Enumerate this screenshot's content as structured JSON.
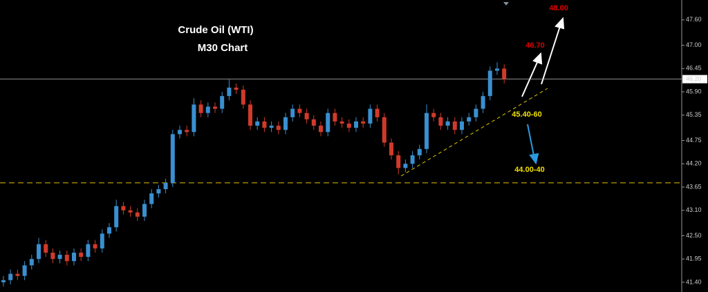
{
  "chart_data": {
    "type": "candlestick",
    "title": "Crude Oil (WTI)",
    "subtitle": "M30 Chart",
    "annotations": [
      "48.00",
      "46.70",
      "45.40-60",
      "44.00-40"
    ],
    "open": [
      41.4,
      41.45,
      41.6,
      41.55,
      41.8,
      41.95,
      42.3,
      42.1,
      41.95,
      42.05,
      41.9,
      42.1,
      42.0,
      42.3,
      42.2,
      42.55,
      42.7,
      43.2,
      43.1,
      43.05,
      42.95,
      43.25,
      43.5,
      43.6,
      43.75,
      44.9,
      45.0,
      44.95,
      45.6,
      45.4,
      45.55,
      45.5,
      45.8,
      46.0,
      45.95,
      45.6,
      45.1,
      45.2,
      45.05,
      45.1,
      45.0,
      45.3,
      45.5,
      45.4,
      45.25,
      45.1,
      44.95,
      45.4,
      45.2,
      45.15,
      45.05,
      45.2,
      45.15,
      45.5,
      45.3,
      44.7,
      44.4,
      44.1,
      44.2,
      44.4,
      44.55,
      45.4,
      45.3,
      45.1,
      45.2,
      45.0,
      45.2,
      45.3,
      45.5,
      45.8,
      46.4,
      46.45
    ],
    "high": [
      41.55,
      41.7,
      41.7,
      41.9,
      42.05,
      42.45,
      42.4,
      42.2,
      42.15,
      42.15,
      42.2,
      42.2,
      42.4,
      42.4,
      42.65,
      42.8,
      43.35,
      43.3,
      43.2,
      43.15,
      43.35,
      43.6,
      43.7,
      43.85,
      45.0,
      45.1,
      45.1,
      45.75,
      45.7,
      45.65,
      45.65,
      45.9,
      46.2,
      46.1,
      46.05,
      45.7,
      45.3,
      45.3,
      45.2,
      45.2,
      45.4,
      45.6,
      45.6,
      45.5,
      45.35,
      45.2,
      45.5,
      45.5,
      45.3,
      45.25,
      45.3,
      45.3,
      45.6,
      45.6,
      45.4,
      44.8,
      44.5,
      44.3,
      44.5,
      44.65,
      45.6,
      45.5,
      45.4,
      45.3,
      45.3,
      45.3,
      45.4,
      45.6,
      45.9,
      46.5,
      46.6,
      46.55
    ],
    "low": [
      41.3,
      41.35,
      41.45,
      41.45,
      41.7,
      41.85,
      42.0,
      41.85,
      41.85,
      41.8,
      41.8,
      41.9,
      41.9,
      42.1,
      42.1,
      42.45,
      42.6,
      43.0,
      42.95,
      42.85,
      42.85,
      43.15,
      43.4,
      43.5,
      43.65,
      44.8,
      44.85,
      44.85,
      45.3,
      45.3,
      45.4,
      45.4,
      45.7,
      45.85,
      45.5,
      45.0,
      45.0,
      44.95,
      44.95,
      44.9,
      44.9,
      45.2,
      45.3,
      45.15,
      45.0,
      44.85,
      44.85,
      45.1,
      45.05,
      44.95,
      44.95,
      45.05,
      45.05,
      45.2,
      44.6,
      44.3,
      43.95,
      44.0,
      44.1,
      44.3,
      44.45,
      45.2,
      45.0,
      45.0,
      44.9,
      44.9,
      45.1,
      45.2,
      45.4,
      45.7,
      46.3,
      46.1
    ],
    "close": [
      41.45,
      41.6,
      41.55,
      41.8,
      41.95,
      42.3,
      42.1,
      41.95,
      42.05,
      41.9,
      42.1,
      42.0,
      42.3,
      42.2,
      42.55,
      42.7,
      43.2,
      43.1,
      43.05,
      42.95,
      43.25,
      43.5,
      43.6,
      43.75,
      44.9,
      45.0,
      44.95,
      45.6,
      45.4,
      45.55,
      45.5,
      45.8,
      46.0,
      45.95,
      45.6,
      45.1,
      45.2,
      45.05,
      45.1,
      45.0,
      45.3,
      45.5,
      45.4,
      45.25,
      45.1,
      44.95,
      45.4,
      45.2,
      45.15,
      45.05,
      45.2,
      45.15,
      45.5,
      45.3,
      44.7,
      44.4,
      44.1,
      44.2,
      44.4,
      44.55,
      45.4,
      45.3,
      45.1,
      45.2,
      45.0,
      45.2,
      45.3,
      45.5,
      45.8,
      46.4,
      46.45,
      46.2
    ],
    "up_color": "#3a8fd0",
    "down_color": "#d03a2a",
    "ylim": [
      41.17,
      48.07
    ],
    "yticks": [
      {
        "value": 47.6,
        "label": "47.60"
      },
      {
        "value": 47.0,
        "label": "47.00"
      },
      46.45,
      {
        "value": 45.9,
        "label": "45.90"
      },
      45.35,
      44.75,
      {
        "value": 44.2,
        "label": "44.20"
      },
      43.65,
      {
        "value": 43.1,
        "label": "43.10"
      },
      {
        "value": 42.5,
        "label": "42.50"
      },
      41.95,
      {
        "value": 41.4,
        "label": "41.40"
      }
    ],
    "last_price": {
      "value": 46.2,
      "label": "46.20"
    },
    "support_line": 43.75
  }
}
